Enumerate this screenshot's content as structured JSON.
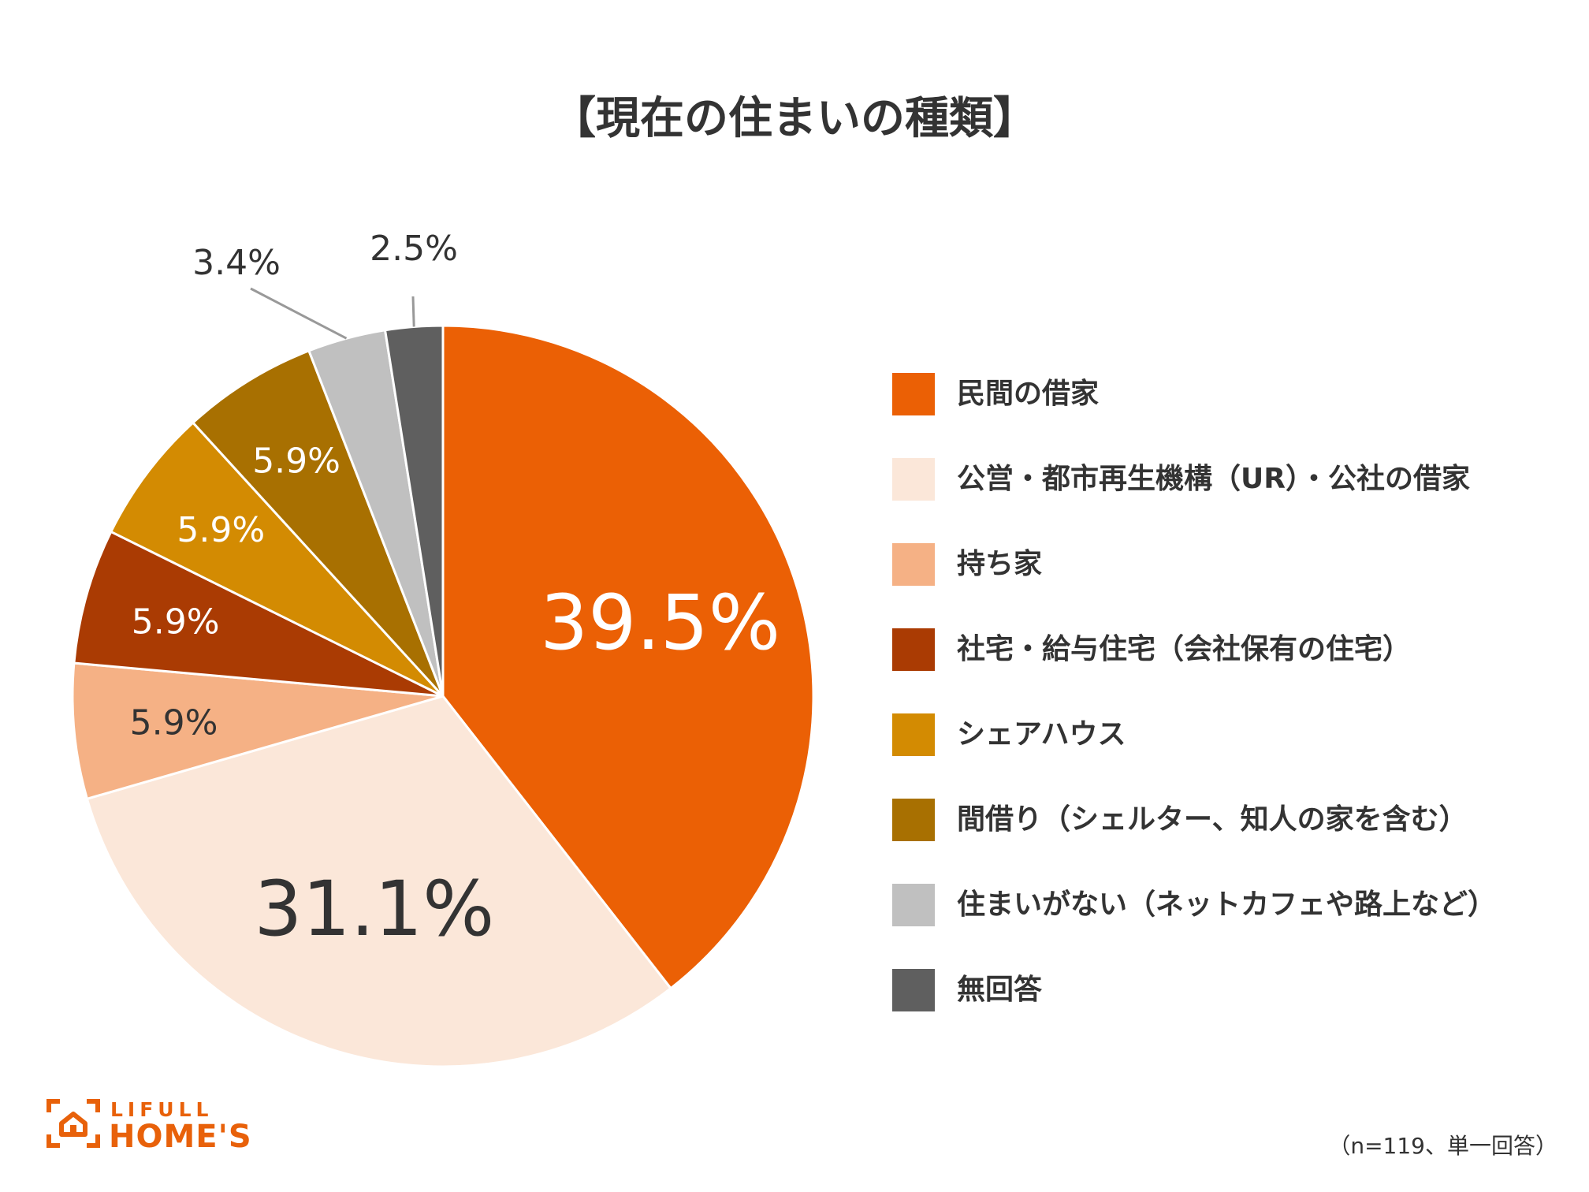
{
  "chart_data": {
    "type": "pie",
    "title": "【現在の住まいの種類】",
    "slices": [
      {
        "label": "民間の借家",
        "value": 39.5,
        "value_label": "39.5%",
        "color": "#EB6005",
        "text_color": "#ffffff"
      },
      {
        "label": "公営・都市再生機構（UR）・公社の借家",
        "value": 31.1,
        "value_label": "31.1%",
        "color": "#FBE7D9",
        "text_color": "#333333"
      },
      {
        "label": "持ち家",
        "value": 5.9,
        "value_label": "5.9%",
        "color": "#F5B185",
        "text_color": "#333333"
      },
      {
        "label": "社宅・給与住宅（会社保有の住宅）",
        "value": 5.9,
        "value_label": "5.9%",
        "color": "#AA3B03",
        "text_color": "#ffffff"
      },
      {
        "label": "シェアハウス",
        "value": 5.9,
        "value_label": "5.9%",
        "color": "#D38B02",
        "text_color": "#ffffff"
      },
      {
        "label": "間借り（シェルター、知人の家を含む）",
        "value": 5.9,
        "value_label": "5.9%",
        "color": "#A87001",
        "text_color": "#ffffff"
      },
      {
        "label": "住まいがない（ネットカフェや路上など）",
        "value": 3.4,
        "value_label": "3.4%",
        "color": "#C0C0C0",
        "text_color": "#333333"
      },
      {
        "label": "無回答",
        "value": 2.5,
        "value_label": "2.5%",
        "color": "#5F5F5F",
        "text_color": "#333333"
      }
    ],
    "legend_position": "right"
  },
  "footer": {
    "logo_line1": "LIFULL",
    "logo_line2": "HOME'S",
    "sample_note": "（n=119、単一回答）"
  },
  "colors": {
    "brand": "#E8610A",
    "text": "#333333"
  }
}
